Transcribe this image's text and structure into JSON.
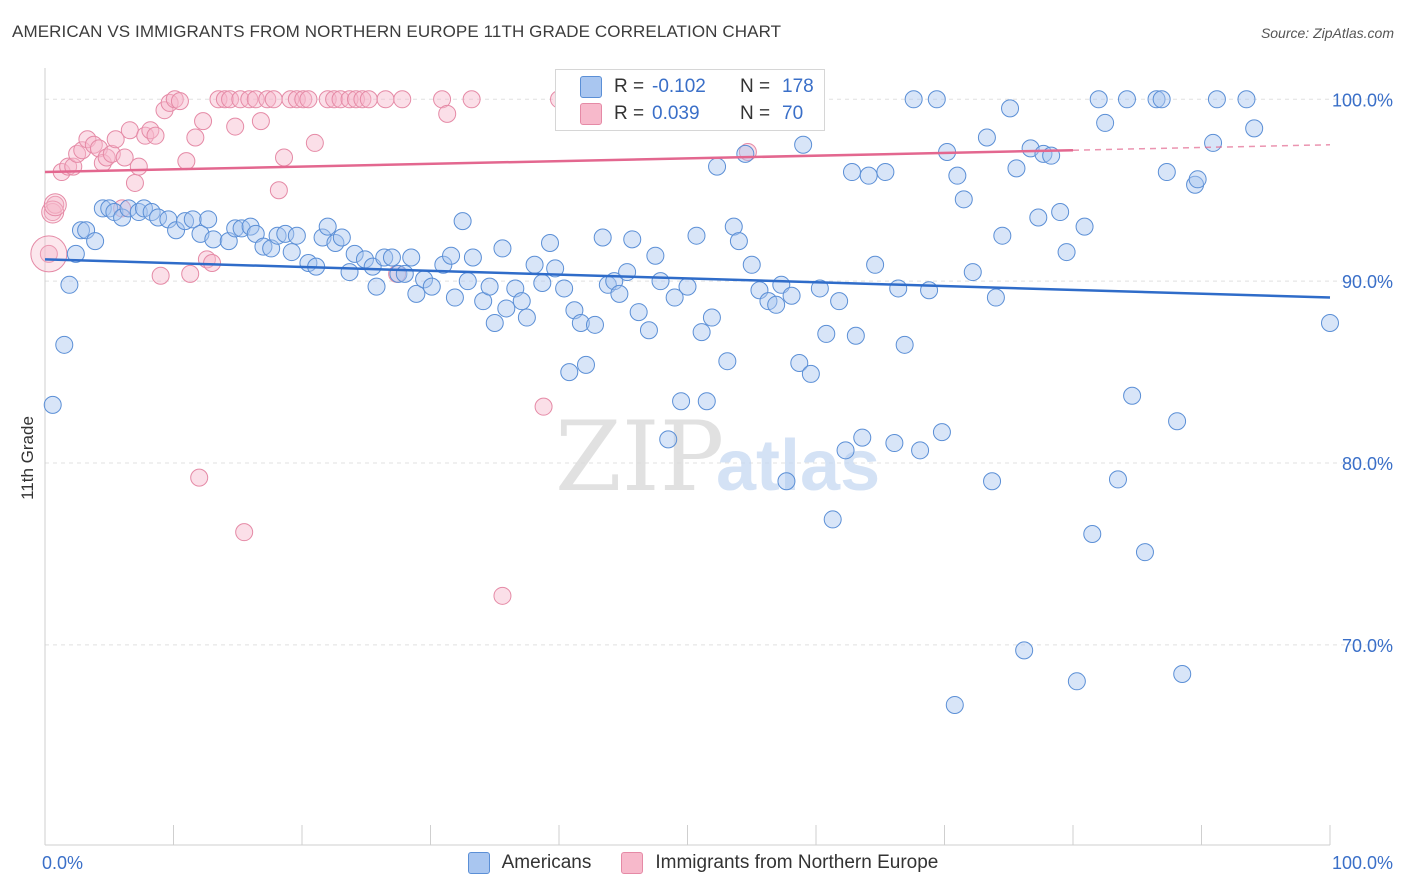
{
  "header": {
    "title": "AMERICAN VS IMMIGRANTS FROM NORTHERN EUROPE 11TH GRADE CORRELATION CHART",
    "source": "Source: ZipAtlas.com"
  },
  "watermark": {
    "zip": "ZIP",
    "atlas": "atlas"
  },
  "stats_legend": {
    "rows": [
      {
        "r_label": "R =",
        "r_value": "-0.102",
        "n_label": "N =",
        "n_value": "178"
      },
      {
        "r_label": "R =",
        "r_value": "0.039",
        "n_label": "N =",
        "n_value": "70"
      }
    ]
  },
  "series_legend": {
    "americans": "Americans",
    "immigrants": "Immigrants from Northern Europe"
  },
  "colors": {
    "americans_fill": "#a9c6f0",
    "americans_stroke": "#5b8fd6",
    "americans_line": "#2f6cc9",
    "immigrants_fill": "#f7b9cb",
    "immigrants_stroke": "#e58aa6",
    "immigrants_line": "#e3678f",
    "tick_label": "#3a6fc8",
    "grid": "#e0e0e0"
  },
  "chart_data": {
    "type": "scatter",
    "title": "AMERICAN VS IMMIGRANTS FROM NORTHERN EUROPE 11TH GRADE CORRELATION CHART",
    "xlabel": "",
    "ylabel": "11th Grade",
    "xlim": [
      0,
      100
    ],
    "ylim": [
      59,
      101.5
    ],
    "x_tick_labels": [
      "0.0%",
      "100.0%"
    ],
    "y_ticks": [
      70,
      80,
      90,
      100
    ],
    "y_tick_labels": [
      "70.0%",
      "80.0%",
      "90.0%",
      "100.0%"
    ],
    "grid": true,
    "series": [
      {
        "name": "Americans",
        "r": -0.102,
        "n": 178,
        "trend": [
          [
            0,
            91.2
          ],
          [
            100,
            89.1
          ]
        ],
        "points": [
          [
            0.6,
            83.2
          ],
          [
            1.5,
            86.5
          ],
          [
            1.9,
            89.8
          ],
          [
            2.4,
            91.5
          ],
          [
            2.8,
            92.8
          ],
          [
            3.2,
            92.8
          ],
          [
            3.9,
            92.2
          ],
          [
            4.5,
            94.0
          ],
          [
            5.0,
            94.0
          ],
          [
            5.4,
            93.8
          ],
          [
            6.0,
            93.5
          ],
          [
            6.5,
            94.0
          ],
          [
            7.3,
            93.8
          ],
          [
            7.7,
            94.0
          ],
          [
            8.3,
            93.8
          ],
          [
            8.8,
            93.5
          ],
          [
            9.6,
            93.4
          ],
          [
            10.2,
            92.8
          ],
          [
            10.9,
            93.3
          ],
          [
            11.5,
            93.4
          ],
          [
            12.1,
            92.6
          ],
          [
            12.7,
            93.4
          ],
          [
            13.1,
            92.3
          ],
          [
            14.3,
            92.2
          ],
          [
            14.8,
            92.9
          ],
          [
            15.3,
            92.9
          ],
          [
            16.0,
            93.0
          ],
          [
            16.4,
            92.6
          ],
          [
            17.0,
            91.9
          ],
          [
            17.6,
            91.8
          ],
          [
            18.1,
            92.5
          ],
          [
            18.7,
            92.6
          ],
          [
            19.2,
            91.6
          ],
          [
            19.6,
            92.5
          ],
          [
            20.5,
            91.0
          ],
          [
            21.1,
            90.8
          ],
          [
            21.6,
            92.4
          ],
          [
            22.0,
            93.0
          ],
          [
            22.6,
            92.1
          ],
          [
            23.1,
            92.4
          ],
          [
            23.7,
            90.5
          ],
          [
            24.1,
            91.5
          ],
          [
            24.9,
            91.2
          ],
          [
            25.5,
            90.8
          ],
          [
            25.8,
            89.7
          ],
          [
            26.4,
            91.3
          ],
          [
            27.0,
            91.3
          ],
          [
            27.5,
            90.4
          ],
          [
            28.0,
            90.4
          ],
          [
            28.5,
            91.3
          ],
          [
            28.9,
            89.3
          ],
          [
            29.5,
            90.1
          ],
          [
            30.1,
            89.7
          ],
          [
            31.0,
            90.9
          ],
          [
            31.6,
            91.4
          ],
          [
            31.9,
            89.1
          ],
          [
            32.5,
            93.3
          ],
          [
            32.9,
            90.0
          ],
          [
            33.3,
            91.3
          ],
          [
            34.1,
            88.9
          ],
          [
            34.6,
            89.7
          ],
          [
            35.0,
            87.7
          ],
          [
            35.6,
            91.8
          ],
          [
            35.9,
            88.5
          ],
          [
            36.6,
            89.6
          ],
          [
            37.1,
            88.9
          ],
          [
            37.5,
            88.0
          ],
          [
            38.1,
            90.9
          ],
          [
            38.7,
            89.9
          ],
          [
            39.3,
            92.1
          ],
          [
            39.7,
            90.7
          ],
          [
            40.4,
            89.6
          ],
          [
            40.8,
            85.0
          ],
          [
            41.2,
            88.4
          ],
          [
            41.7,
            87.7
          ],
          [
            42.1,
            85.4
          ],
          [
            42.8,
            87.6
          ],
          [
            43.4,
            92.4
          ],
          [
            43.8,
            89.8
          ],
          [
            44.3,
            90.0
          ],
          [
            44.7,
            89.3
          ],
          [
            45.3,
            90.5
          ],
          [
            45.7,
            92.3
          ],
          [
            46.2,
            88.3
          ],
          [
            47.0,
            87.3
          ],
          [
            47.5,
            91.4
          ],
          [
            47.9,
            90.0
          ],
          [
            48.5,
            81.3
          ],
          [
            49.0,
            89.1
          ],
          [
            49.5,
            83.4
          ],
          [
            50.0,
            89.7
          ],
          [
            50.7,
            92.5
          ],
          [
            51.1,
            87.2
          ],
          [
            51.5,
            83.4
          ],
          [
            51.9,
            88.0
          ],
          [
            52.3,
            96.3
          ],
          [
            53.1,
            85.6
          ],
          [
            53.6,
            93.0
          ],
          [
            54.0,
            92.2
          ],
          [
            54.5,
            97.0
          ],
          [
            55.0,
            90.9
          ],
          [
            55.6,
            89.5
          ],
          [
            56.3,
            88.9
          ],
          [
            56.9,
            88.7
          ],
          [
            57.3,
            89.8
          ],
          [
            57.7,
            79.0
          ],
          [
            58.1,
            89.2
          ],
          [
            58.7,
            85.5
          ],
          [
            59.0,
            97.5
          ],
          [
            59.6,
            84.9
          ],
          [
            60.3,
            89.6
          ],
          [
            60.8,
            87.1
          ],
          [
            61.3,
            76.9
          ],
          [
            61.8,
            88.9
          ],
          [
            62.3,
            80.7
          ],
          [
            62.8,
            96.0
          ],
          [
            63.1,
            87.0
          ],
          [
            63.6,
            81.4
          ],
          [
            64.1,
            95.8
          ],
          [
            64.6,
            90.9
          ],
          [
            65.4,
            96.0
          ],
          [
            66.1,
            81.1
          ],
          [
            66.4,
            89.6
          ],
          [
            66.9,
            86.5
          ],
          [
            67.6,
            100.0
          ],
          [
            68.1,
            80.7
          ],
          [
            68.8,
            89.5
          ],
          [
            69.4,
            100.0
          ],
          [
            69.8,
            81.7
          ],
          [
            70.2,
            97.1
          ],
          [
            70.8,
            66.7
          ],
          [
            71.0,
            95.8
          ],
          [
            71.5,
            94.5
          ],
          [
            72.2,
            90.5
          ],
          [
            73.3,
            97.9
          ],
          [
            73.7,
            79.0
          ],
          [
            74.0,
            89.1
          ],
          [
            74.5,
            92.5
          ],
          [
            75.1,
            99.5
          ],
          [
            75.6,
            96.2
          ],
          [
            76.2,
            69.7
          ],
          [
            76.7,
            97.3
          ],
          [
            77.3,
            93.5
          ],
          [
            77.7,
            97.0
          ],
          [
            78.3,
            96.9
          ],
          [
            79.0,
            93.8
          ],
          [
            79.5,
            91.6
          ],
          [
            80.3,
            68.0
          ],
          [
            80.9,
            93.0
          ],
          [
            81.5,
            76.1
          ],
          [
            82.0,
            100.0
          ],
          [
            82.5,
            98.7
          ],
          [
            83.5,
            79.1
          ],
          [
            84.2,
            100.0
          ],
          [
            84.6,
            83.7
          ],
          [
            85.6,
            75.1
          ],
          [
            86.5,
            100.0
          ],
          [
            86.9,
            100.0
          ],
          [
            87.3,
            96.0
          ],
          [
            88.1,
            82.3
          ],
          [
            88.5,
            68.4
          ],
          [
            89.5,
            95.3
          ],
          [
            89.7,
            95.6
          ],
          [
            90.9,
            97.6
          ],
          [
            91.2,
            100.0
          ],
          [
            93.5,
            100.0
          ],
          [
            94.1,
            98.4
          ],
          [
            100.0,
            87.7
          ]
        ]
      },
      {
        "name": "Immigrants from Northern Europe",
        "r": 0.039,
        "n": 70,
        "trend": [
          [
            0,
            96.0
          ],
          [
            80,
            97.2
          ]
        ],
        "points": [
          [
            0.3,
            91.5
          ],
          [
            0.6,
            93.8
          ],
          [
            0.8,
            94.2
          ],
          [
            1.3,
            96.0
          ],
          [
            1.8,
            96.3
          ],
          [
            2.2,
            96.3
          ],
          [
            2.5,
            97.0
          ],
          [
            2.9,
            97.2
          ],
          [
            3.3,
            97.8
          ],
          [
            3.8,
            97.5
          ],
          [
            4.2,
            97.3
          ],
          [
            4.5,
            96.5
          ],
          [
            4.8,
            96.8
          ],
          [
            5.2,
            97.0
          ],
          [
            5.5,
            97.8
          ],
          [
            6.0,
            94.0
          ],
          [
            6.2,
            96.8
          ],
          [
            6.6,
            98.3
          ],
          [
            7.0,
            95.4
          ],
          [
            7.3,
            96.3
          ],
          [
            7.8,
            98.0
          ],
          [
            8.2,
            98.3
          ],
          [
            8.6,
            98.0
          ],
          [
            9.0,
            90.3
          ],
          [
            9.3,
            99.4
          ],
          [
            9.7,
            99.8
          ],
          [
            10.1,
            100.0
          ],
          [
            10.5,
            99.9
          ],
          [
            11.0,
            96.6
          ],
          [
            11.3,
            90.4
          ],
          [
            11.7,
            97.9
          ],
          [
            12.0,
            79.2
          ],
          [
            12.3,
            98.8
          ],
          [
            12.6,
            91.2
          ],
          [
            13.0,
            91.0
          ],
          [
            13.5,
            100.0
          ],
          [
            14.0,
            100.0
          ],
          [
            14.4,
            100.0
          ],
          [
            14.8,
            98.5
          ],
          [
            15.2,
            100.0
          ],
          [
            15.5,
            76.2
          ],
          [
            15.9,
            100.0
          ],
          [
            16.4,
            100.0
          ],
          [
            16.8,
            98.8
          ],
          [
            17.3,
            100.0
          ],
          [
            17.8,
            100.0
          ],
          [
            18.2,
            95.0
          ],
          [
            18.6,
            96.8
          ],
          [
            19.1,
            100.0
          ],
          [
            19.6,
            100.0
          ],
          [
            20.1,
            100.0
          ],
          [
            20.5,
            100.0
          ],
          [
            21.0,
            97.6
          ],
          [
            22.0,
            100.0
          ],
          [
            22.5,
            100.0
          ],
          [
            23.0,
            100.0
          ],
          [
            23.7,
            100.0
          ],
          [
            24.2,
            100.0
          ],
          [
            24.7,
            100.0
          ],
          [
            25.2,
            100.0
          ],
          [
            26.5,
            100.0
          ],
          [
            27.4,
            90.4
          ],
          [
            27.8,
            100.0
          ],
          [
            30.9,
            100.0
          ],
          [
            31.3,
            99.2
          ],
          [
            33.2,
            100.0
          ],
          [
            35.6,
            72.7
          ],
          [
            38.8,
            83.1
          ],
          [
            40.0,
            100.0
          ],
          [
            54.7,
            97.1
          ]
        ]
      }
    ]
  }
}
